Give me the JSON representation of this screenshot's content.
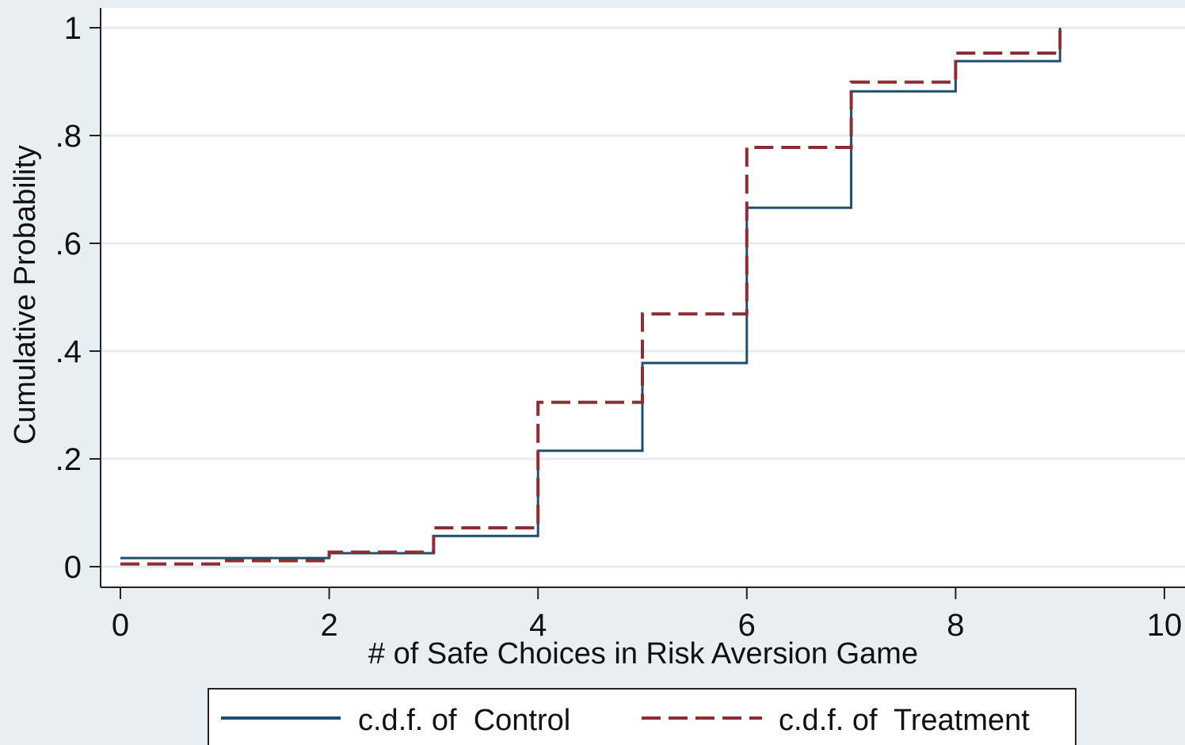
{
  "chart_data": {
    "type": "line",
    "step": true,
    "xlabel": "# of Safe Choices in Risk Aversion Game",
    "ylabel": "Cumulative Probability",
    "xlim": [
      0,
      10
    ],
    "ylim": [
      0,
      1
    ],
    "x_ticks": [
      0,
      2,
      4,
      6,
      8,
      10
    ],
    "x_tick_labels": [
      "0",
      "2",
      "4",
      "6",
      "8",
      "10"
    ],
    "y_ticks": [
      0,
      0.2,
      0.4,
      0.6,
      0.8,
      1
    ],
    "y_tick_labels": [
      "0",
      ".2",
      ".4",
      ".6",
      ".8",
      "1"
    ],
    "grid": "horizontal",
    "legend_position": "bottom",
    "series": [
      {
        "name": "c.d.f. of  Control",
        "color": "#1f4e6e",
        "style": "solid",
        "points": [
          [
            0,
            0.016
          ],
          [
            2,
            0.025
          ],
          [
            3,
            0.057
          ],
          [
            4,
            0.215
          ],
          [
            5,
            0.378
          ],
          [
            6,
            0.666
          ],
          [
            7,
            0.882
          ],
          [
            8,
            0.938
          ],
          [
            9,
            1.0
          ]
        ]
      },
      {
        "name": "c.d.f. of  Treatment",
        "color": "#8b2d34",
        "style": "dashed",
        "points": [
          [
            0,
            0.005
          ],
          [
            1,
            0.011
          ],
          [
            2,
            0.027
          ],
          [
            3,
            0.072
          ],
          [
            4,
            0.305
          ],
          [
            5,
            0.469
          ],
          [
            6,
            0.778
          ],
          [
            7,
            0.899
          ],
          [
            8,
            0.953
          ],
          [
            9,
            1.0
          ]
        ]
      }
    ]
  }
}
